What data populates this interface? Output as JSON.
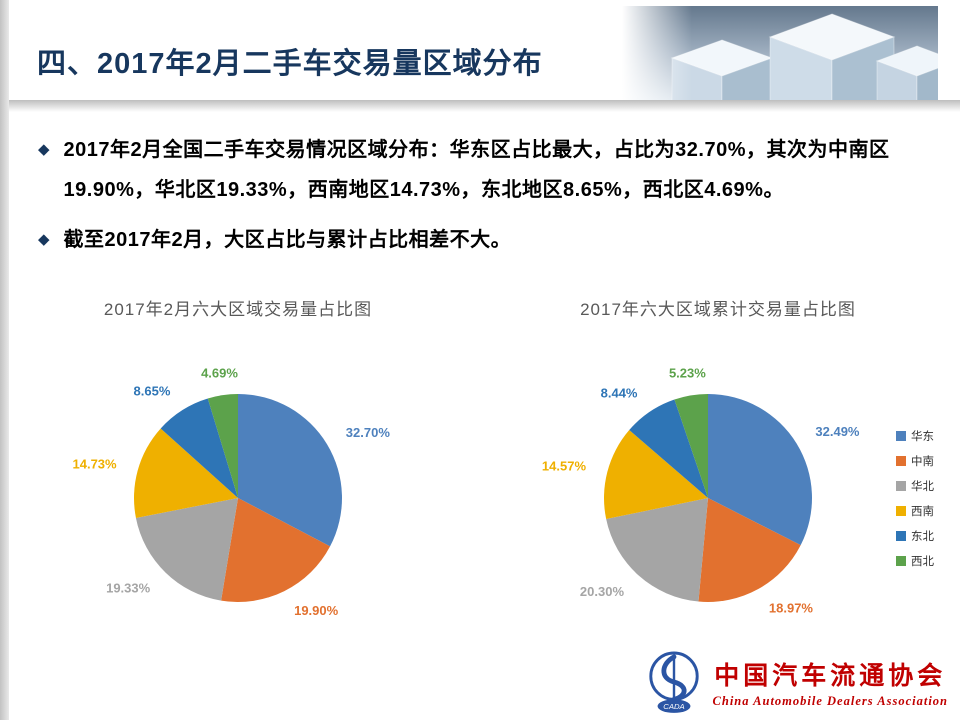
{
  "slide": {
    "title": "四、2017年2月二手车交易量区域分布",
    "bullets": [
      "2017年2月全国二手车交易情况区域分布：华东区占比最大，占比为32.70%，其次为中南区19.90%，华北区19.33%，西南地区14.73%，东北地区8.65%，西北区4.69%。",
      "截至2017年2月，大区占比与累计占比相差不大。"
    ]
  },
  "colors": {
    "title_navy": "#17375E",
    "chart_title_gray": "#595959",
    "logo_red": "#C00000",
    "series": [
      "#4E81BD",
      "#E2712F",
      "#A5A5A5",
      "#EFB000",
      "#2E75B6",
      "#5CA24B"
    ]
  },
  "chart_data": [
    {
      "type": "pie",
      "title": "2017年2月六大区域交易量占比图",
      "categories": [
        "华东",
        "中南",
        "华北",
        "西南",
        "东北",
        "西北"
      ],
      "values": [
        32.7,
        19.9,
        19.33,
        14.73,
        8.65,
        4.69
      ],
      "labels": [
        "32.70%",
        "19.90%",
        "19.33%",
        "14.73%",
        "8.65%",
        "4.69%"
      ],
      "colors": [
        "#4E81BD",
        "#E2712F",
        "#A5A5A5",
        "#EFB000",
        "#2E75B6",
        "#5CA24B"
      ],
      "start_angle_deg": -90,
      "direction": "clockwise",
      "legend": false
    },
    {
      "type": "pie",
      "title": "2017年六大区域累计交易量占比图",
      "categories": [
        "华东",
        "中南",
        "华北",
        "西南",
        "东北",
        "西北"
      ],
      "values": [
        32.49,
        18.97,
        20.3,
        14.57,
        8.44,
        5.23
      ],
      "labels": [
        "32.49%",
        "18.97%",
        "20.30%",
        "14.57%",
        "8.44%",
        "5.23%"
      ],
      "colors": [
        "#4E81BD",
        "#E2712F",
        "#A5A5A5",
        "#EFB000",
        "#2E75B6",
        "#5CA24B"
      ],
      "start_angle_deg": -90,
      "direction": "clockwise",
      "legend": true,
      "legend_position": "right"
    }
  ],
  "logo": {
    "org_cn": "中国汽车流通协会",
    "org_en": "China Automobile Dealers Association",
    "mark": "CADA"
  }
}
